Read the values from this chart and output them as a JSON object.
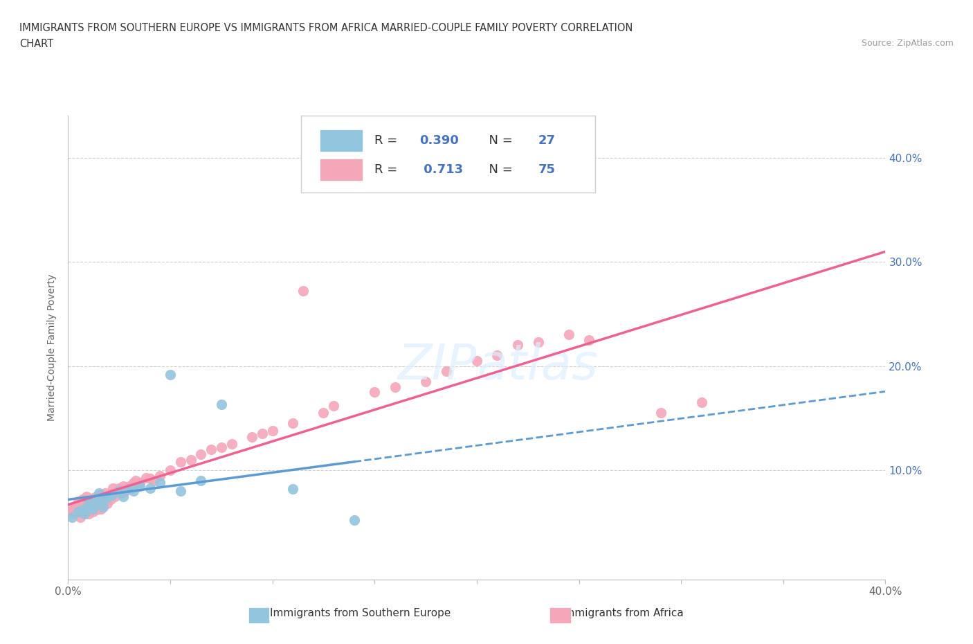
{
  "title_line1": "IMMIGRANTS FROM SOUTHERN EUROPE VS IMMIGRANTS FROM AFRICA MARRIED-COUPLE FAMILY POVERTY CORRELATION",
  "title_line2": "CHART",
  "source_text": "Source: ZipAtlas.com",
  "ylabel": "Married-Couple Family Poverty",
  "xlim": [
    0.0,
    0.4
  ],
  "ylim": [
    -0.005,
    0.44
  ],
  "color_blue": "#92c5de",
  "color_pink": "#f4a7b9",
  "color_blue_line": "#5b9bd5",
  "color_pink_line": "#f06090",
  "color_blue_text": "#4472c4",
  "R_blue": "0.390",
  "N_blue": "27",
  "R_pink": "0.713",
  "N_pink": "75",
  "legend_label_blue": "Immigrants from Southern Europe",
  "legend_label_pink": "Immigrants from Africa",
  "blue_scatter_x": [
    0.002,
    0.005,
    0.007,
    0.008,
    0.01,
    0.01,
    0.012,
    0.013,
    0.015,
    0.015,
    0.017,
    0.018,
    0.02,
    0.022,
    0.025,
    0.027,
    0.03,
    0.032,
    0.035,
    0.04,
    0.045,
    0.05,
    0.055,
    0.065,
    0.075,
    0.11,
    0.14
  ],
  "blue_scatter_y": [
    0.055,
    0.06,
    0.062,
    0.058,
    0.065,
    0.07,
    0.063,
    0.068,
    0.072,
    0.078,
    0.065,
    0.073,
    0.075,
    0.077,
    0.08,
    0.075,
    0.082,
    0.08,
    0.085,
    0.083,
    0.088,
    0.192,
    0.08,
    0.09,
    0.163,
    0.082,
    0.052
  ],
  "pink_scatter_x": [
    0.001,
    0.002,
    0.003,
    0.004,
    0.005,
    0.005,
    0.006,
    0.007,
    0.007,
    0.008,
    0.008,
    0.009,
    0.009,
    0.01,
    0.01,
    0.011,
    0.011,
    0.012,
    0.012,
    0.013,
    0.013,
    0.014,
    0.014,
    0.015,
    0.015,
    0.016,
    0.016,
    0.017,
    0.018,
    0.018,
    0.019,
    0.02,
    0.021,
    0.022,
    0.022,
    0.023,
    0.024,
    0.025,
    0.026,
    0.027,
    0.028,
    0.03,
    0.032,
    0.033,
    0.035,
    0.038,
    0.04,
    0.042,
    0.045,
    0.05,
    0.055,
    0.06,
    0.065,
    0.07,
    0.075,
    0.08,
    0.09,
    0.095,
    0.1,
    0.11,
    0.115,
    0.125,
    0.13,
    0.15,
    0.16,
    0.175,
    0.185,
    0.2,
    0.21,
    0.22,
    0.23,
    0.245,
    0.255,
    0.29,
    0.31
  ],
  "pink_scatter_y": [
    0.06,
    0.063,
    0.058,
    0.065,
    0.06,
    0.07,
    0.055,
    0.065,
    0.072,
    0.06,
    0.068,
    0.062,
    0.075,
    0.058,
    0.068,
    0.065,
    0.072,
    0.06,
    0.07,
    0.065,
    0.074,
    0.062,
    0.072,
    0.068,
    0.076,
    0.063,
    0.073,
    0.068,
    0.073,
    0.078,
    0.068,
    0.075,
    0.072,
    0.078,
    0.083,
    0.075,
    0.08,
    0.083,
    0.078,
    0.085,
    0.08,
    0.085,
    0.088,
    0.09,
    0.088,
    0.093,
    0.092,
    0.09,
    0.095,
    0.1,
    0.108,
    0.11,
    0.115,
    0.12,
    0.122,
    0.125,
    0.132,
    0.135,
    0.138,
    0.145,
    0.272,
    0.155,
    0.162,
    0.175,
    0.18,
    0.185,
    0.195,
    0.205,
    0.21,
    0.22,
    0.223,
    0.23,
    0.225,
    0.155,
    0.165
  ]
}
